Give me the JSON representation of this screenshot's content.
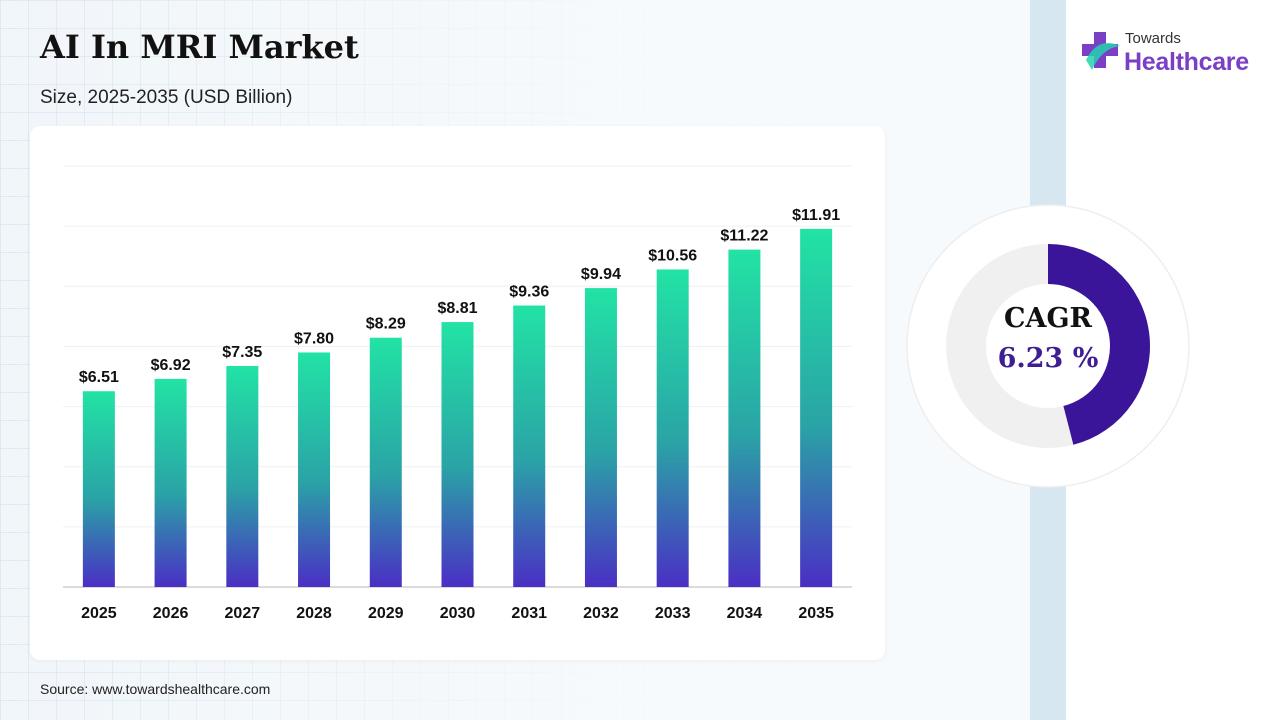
{
  "title": "AI In MRI Market",
  "subtitle": "Size, 2025-2035 (USD Billion)",
  "source": "Source: www.towardshealthcare.com",
  "logo": {
    "top_text": "Towards",
    "main_text": "Healthcare",
    "icon": "medical-cross-icon"
  },
  "cagr": {
    "label": "CAGR",
    "value": "6.23 %",
    "fraction": 0.46,
    "ring_color": "#3b1599",
    "track_color": "#f0f0f0"
  },
  "colors": {
    "bar_top": "#22e3a5",
    "bar_mid": "#2aa3a6",
    "bar_bottom": "#4a2fc4",
    "logo_purple": "#7a3fc4"
  },
  "chart_data": {
    "type": "bar",
    "categories": [
      "2025",
      "2026",
      "2027",
      "2028",
      "2029",
      "2030",
      "2031",
      "2032",
      "2033",
      "2034",
      "2035"
    ],
    "values": [
      6.51,
      6.92,
      7.35,
      7.8,
      8.29,
      8.81,
      9.36,
      9.94,
      10.56,
      11.22,
      11.91
    ],
    "labels": [
      "$6.51",
      "$6.92",
      "$7.35",
      "$7.80",
      "$8.29",
      "$8.81",
      "$9.36",
      "$9.94",
      "$10.56",
      "$11.22",
      "$11.91"
    ],
    "title": "AI In MRI Market",
    "xlabel": "",
    "ylabel": "",
    "ylim": [
      0,
      14
    ],
    "grid": true,
    "legend": "none"
  }
}
